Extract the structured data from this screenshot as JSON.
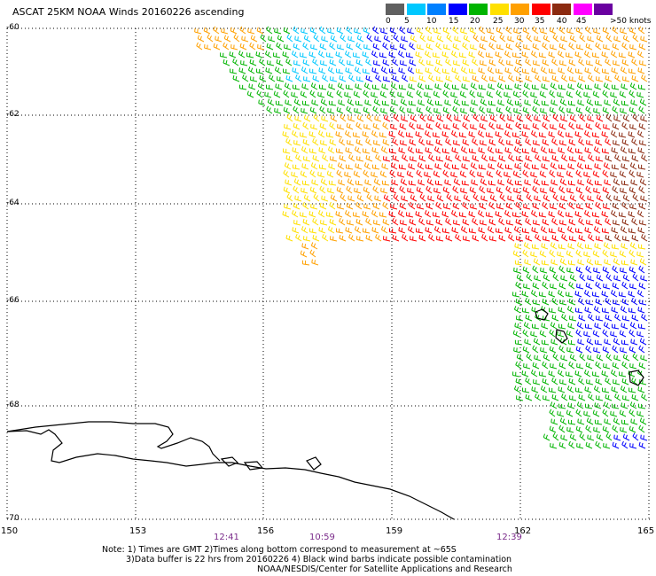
{
  "title": "ASCAT 25KM NOAA Winds 20160226 ascending",
  "legend": {
    "units": "knots",
    "tick_labels": [
      "0",
      "5",
      "10",
      "15",
      "20",
      "25",
      "30",
      "35",
      "40",
      "45",
      ">50 knots"
    ],
    "colors": [
      "#606060",
      "#00c8ff",
      "#0080ff",
      "#0000ff",
      "#00b400",
      "#ffe000",
      "#ffa000",
      "#ff0000",
      "#8b2a10",
      "#ff00ff",
      "#6a00a0"
    ]
  },
  "map": {
    "lat_labels": [
      "-60",
      "-62",
      "-64",
      "-66",
      "-68",
      "-70"
    ],
    "lon_labels": [
      "150",
      "153",
      "156",
      "159",
      "162",
      "165"
    ],
    "time_labels": [
      "12:41",
      "10:59",
      "12:39"
    ],
    "coastline_color": "#000000",
    "gridline_style": "dotted"
  },
  "notes": {
    "line1": "Note: 1) Times are GMT 2)Times along bottom correspond to measurement at ~65S",
    "line2": "3)Data buffer is 22 hrs from 20160226 4) Black wind barbs indicate possible contamination",
    "line3": "NOAA/NESDIS/Center for Satellite Applications and Research"
  }
}
